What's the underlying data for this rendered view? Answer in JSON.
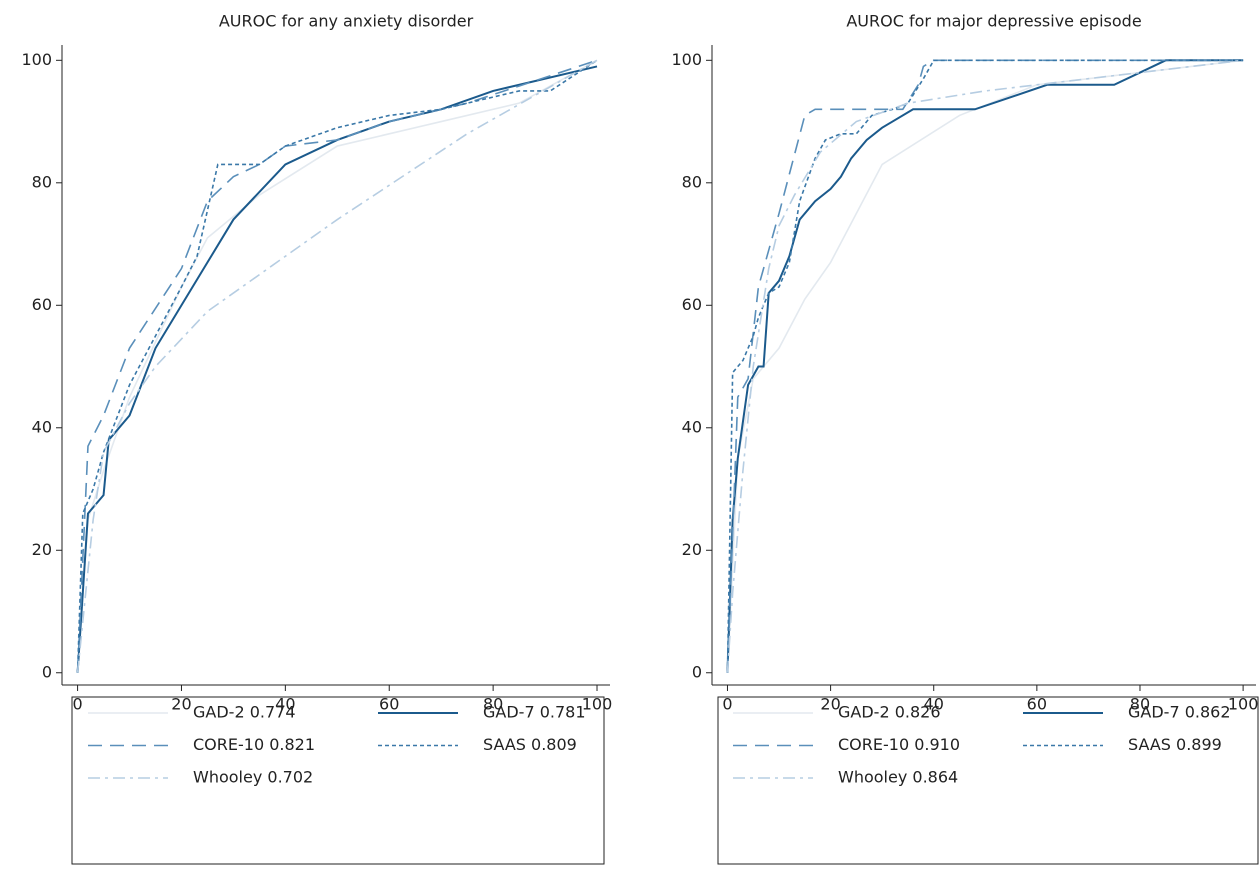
{
  "chart_data": [
    {
      "type": "line",
      "title": "AUROC for any anxiety disorder",
      "xlim": [
        -3,
        102.5
      ],
      "ylim": [
        -2,
        102.5
      ],
      "xticks": [
        0,
        20,
        40,
        60,
        80,
        100
      ],
      "yticks": [
        0,
        20,
        40,
        60,
        80,
        100
      ],
      "legend": "bottom",
      "series": [
        {
          "name": "GAD-2 0.774",
          "color": "#e3e9ef",
          "dash": "none",
          "x": [
            0,
            2,
            5,
            10,
            20,
            25,
            35,
            50,
            70,
            85,
            100
          ],
          "values": [
            0,
            25,
            33,
            45,
            63,
            71,
            78,
            86,
            90,
            93,
            100
          ]
        },
        {
          "name": "GAD-7 0.781",
          "color": "#1b5a8c",
          "dash": "none",
          "x": [
            0,
            2,
            5,
            6,
            10,
            15,
            20,
            25,
            30,
            40,
            50,
            60,
            70,
            80,
            100
          ],
          "values": [
            0,
            26,
            29,
            38,
            42,
            53,
            60,
            67,
            74,
            83,
            87,
            90,
            92,
            95,
            99
          ]
        },
        {
          "name": "CORE-10 0.821",
          "color": "#5a8fba",
          "dash": "14 8",
          "x": [
            0,
            2,
            5,
            10,
            20,
            25,
            30,
            35,
            40,
            50,
            60,
            75,
            100
          ],
          "values": [
            0,
            37,
            42,
            53,
            66,
            77,
            81,
            83,
            86,
            87,
            90,
            93,
            100
          ]
        },
        {
          "name": "SAAS 0.809",
          "color": "#3a78a8",
          "dash": "4 3",
          "x": [
            0,
            1,
            3,
            5,
            10,
            20,
            23,
            27,
            35,
            40,
            50,
            60,
            70,
            85,
            91,
            100
          ],
          "values": [
            0,
            26,
            30,
            36,
            47,
            63,
            68,
            83,
            83,
            86,
            89,
            91,
            92,
            95,
            95,
            100
          ]
        },
        {
          "name": "Whooley 0.702",
          "color": "#b6cde2",
          "dash": "12 5 3 5",
          "x": [
            0,
            3,
            5,
            10,
            15,
            25,
            50,
            75,
            100
          ],
          "values": [
            0,
            25,
            36,
            44,
            50,
            59,
            74,
            88,
            100
          ]
        }
      ]
    },
    {
      "type": "line",
      "title": "AUROC for major depressive episode",
      "xlim": [
        -3,
        102.5
      ],
      "ylim": [
        -2,
        102.5
      ],
      "xticks": [
        0,
        20,
        40,
        60,
        80,
        100
      ],
      "yticks": [
        0,
        20,
        40,
        60,
        80,
        100
      ],
      "legend": "bottom",
      "series": [
        {
          "name": "GAD-2 0.826",
          "color": "#e3e9ef",
          "dash": "none",
          "x": [
            0,
            2,
            5,
            10,
            15,
            20,
            30,
            45,
            60,
            80,
            100
          ],
          "values": [
            0,
            35,
            48,
            53,
            61,
            67,
            83,
            91,
            96,
            98,
            100
          ]
        },
        {
          "name": "GAD-7 0.862",
          "color": "#1b5a8c",
          "dash": "none",
          "x": [
            0,
            1,
            2,
            4,
            6,
            7,
            8,
            10,
            12,
            14,
            17,
            20,
            22,
            24,
            27,
            30,
            36,
            48,
            62,
            68,
            75,
            80,
            85,
            100
          ],
          "values": [
            0,
            25,
            35,
            47,
            50,
            50,
            62,
            64,
            68,
            74,
            77,
            79,
            81,
            84,
            87,
            89,
            92,
            92,
            96,
            96,
            96,
            98,
            100,
            100
          ]
        },
        {
          "name": "CORE-10 0.910",
          "color": "#5a8fba",
          "dash": "14 8",
          "x": [
            0,
            2,
            4,
            6,
            8,
            10,
            15,
            17,
            30,
            34,
            37,
            38,
            40,
            100
          ],
          "values": [
            0,
            45,
            48,
            63,
            69,
            75,
            91,
            92,
            92,
            92,
            96,
            99,
            100,
            100
          ]
        },
        {
          "name": "SAAS 0.899",
          "color": "#3a78a8",
          "dash": "4 3",
          "x": [
            0,
            1,
            3,
            5,
            6,
            8,
            10,
            12,
            14,
            17,
            19,
            22,
            25,
            28,
            32,
            35,
            38,
            40,
            100
          ],
          "values": [
            0,
            49,
            51,
            55,
            58,
            62,
            63,
            67,
            77,
            84,
            87,
            88,
            88,
            91,
            92,
            93,
            97,
            100,
            100
          ]
        },
        {
          "name": "Whooley 0.864",
          "color": "#b6cde2",
          "dash": "12 5 3 5",
          "x": [
            0,
            1,
            3,
            5,
            8,
            10,
            13,
            18,
            25,
            35,
            50,
            70,
            100
          ],
          "values": [
            0,
            13,
            33,
            50,
            66,
            73,
            78,
            85,
            90,
            93,
            95,
            97,
            100
          ]
        }
      ]
    }
  ]
}
